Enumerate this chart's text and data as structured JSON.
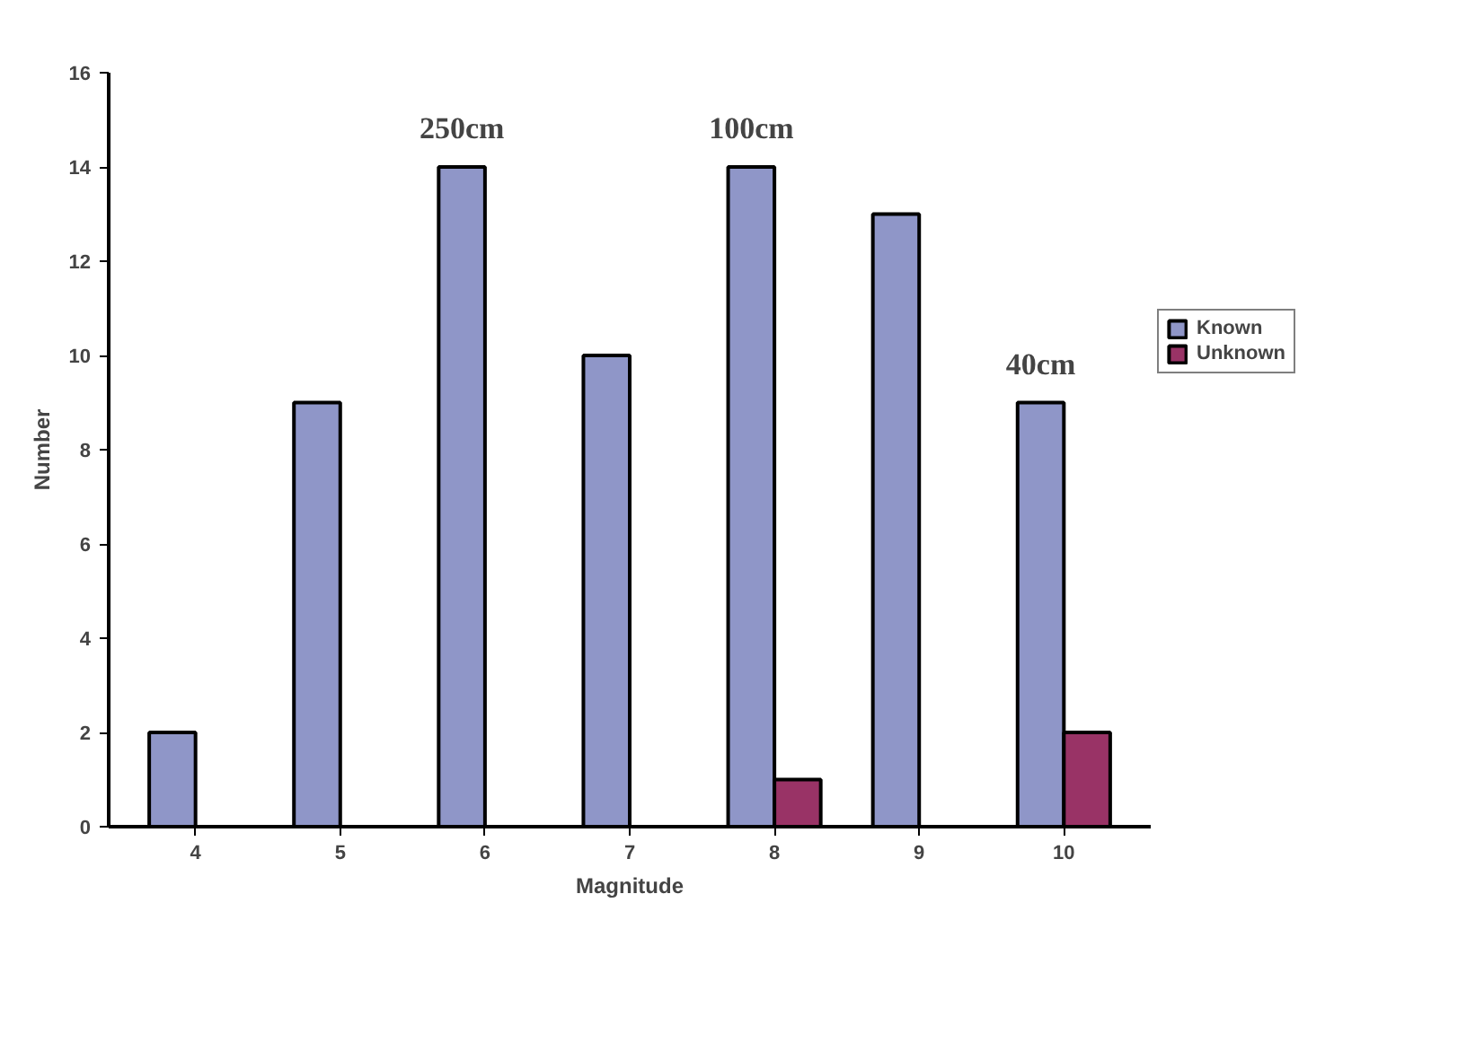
{
  "chart_data": {
    "type": "bar",
    "xlabel": "Magnitude",
    "ylabel": "Number",
    "categories": [
      "4",
      "5",
      "6",
      "7",
      "8",
      "9",
      "10"
    ],
    "series": [
      {
        "name": "Known",
        "color": "#8f96c8",
        "values": [
          2,
          9,
          14,
          10,
          14,
          13,
          9
        ]
      },
      {
        "name": "Unknown",
        "color": "#993366",
        "values": [
          null,
          null,
          null,
          null,
          1,
          null,
          2
        ]
      }
    ],
    "ylim": [
      0,
      16
    ],
    "yticks": [
      0,
      2,
      4,
      6,
      8,
      10,
      12,
      14,
      16
    ],
    "grid": false,
    "legend": "right",
    "annotations": [
      {
        "text": "250cm",
        "x": "6",
        "y": 14
      },
      {
        "text": "100cm",
        "x": "8",
        "y": 14
      },
      {
        "text": "40cm",
        "x": "10",
        "y": 9
      }
    ]
  }
}
